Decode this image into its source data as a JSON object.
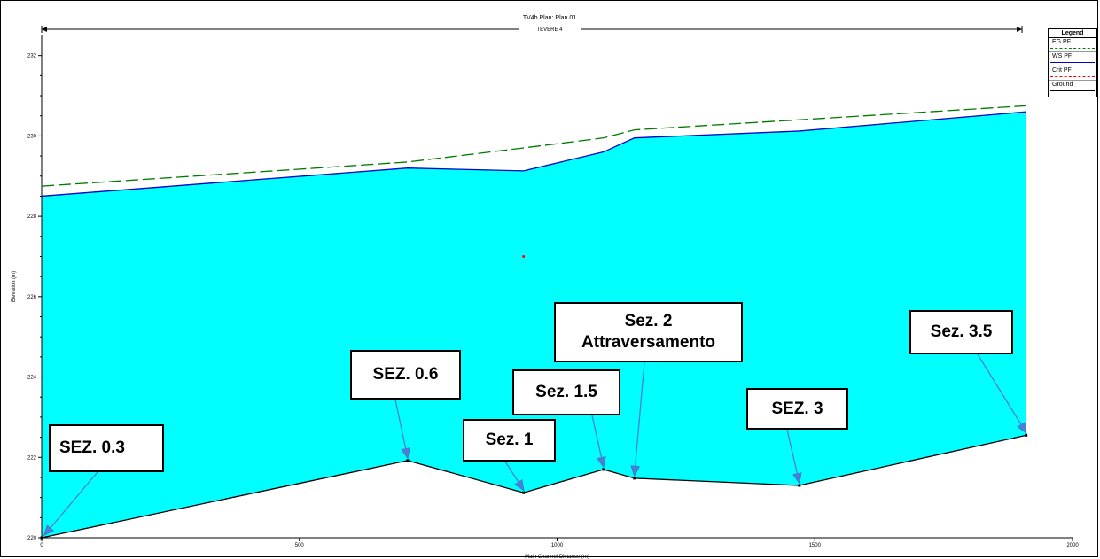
{
  "chart_data": {
    "type": "area",
    "title": "TV4b     Plan: Plan 01",
    "reach_label": "TEVERE 4",
    "xlabel": "Main Channel Distance (m)",
    "ylabel": "Elevation (m)",
    "xlim": [
      0,
      2000
    ],
    "ylim": [
      220,
      232.5
    ],
    "x_ticks": [
      0,
      500,
      1000,
      1500,
      2000
    ],
    "y_ticks": [
      220,
      222,
      224,
      226,
      228,
      230,
      232
    ],
    "grid": false,
    "legend_placement": "top-right, clipped",
    "series": [
      {
        "name": "EG PF",
        "style": "dashed",
        "color": "#007a00",
        "x": [
          0,
          710,
          935,
          1090,
          1150,
          1470,
          1910
        ],
        "values": [
          228.75,
          229.35,
          229.7,
          229.95,
          230.15,
          230.4,
          230.75
        ]
      },
      {
        "name": "WS PF",
        "style": "solid",
        "color": "#0000cc",
        "fill": "#00ffff",
        "x": [
          0,
          710,
          935,
          1090,
          1150,
          1470,
          1910
        ],
        "values": [
          228.5,
          229.2,
          229.13,
          229.6,
          229.95,
          230.12,
          230.6
        ]
      },
      {
        "name": "Crit PF",
        "style": "points",
        "color": "#ff0000",
        "x": [
          935
        ],
        "values": [
          227.0
        ]
      },
      {
        "name": "Ground",
        "style": "line-markers",
        "color": "#000000",
        "x": [
          0,
          710,
          935,
          1090,
          1150,
          1470,
          1910
        ],
        "values": [
          220.0,
          221.92,
          221.12,
          221.7,
          221.48,
          221.3,
          222.55
        ]
      }
    ],
    "legend_entries": [
      "EG  PF",
      "WS  PF",
      "Crit  PF",
      "Ground"
    ],
    "legend_title": "Legend",
    "annotations": [
      {
        "label": "SEZ. 0.3",
        "target": [
          0,
          220.0
        ]
      },
      {
        "label": "SEZ. 0.6",
        "target": [
          710,
          221.92
        ]
      },
      {
        "label": "Sez. 1",
        "target": [
          935,
          221.12
        ]
      },
      {
        "label": "Sez. 1.5",
        "target": [
          1090,
          221.7
        ]
      },
      {
        "label": "Sez. 2\nAttraversamento",
        "target": [
          1150,
          221.48
        ]
      },
      {
        "label": "SEZ. 3",
        "target": [
          1470,
          221.3
        ]
      },
      {
        "label": "Sez. 3.5",
        "target": [
          1910,
          222.55
        ]
      }
    ]
  }
}
